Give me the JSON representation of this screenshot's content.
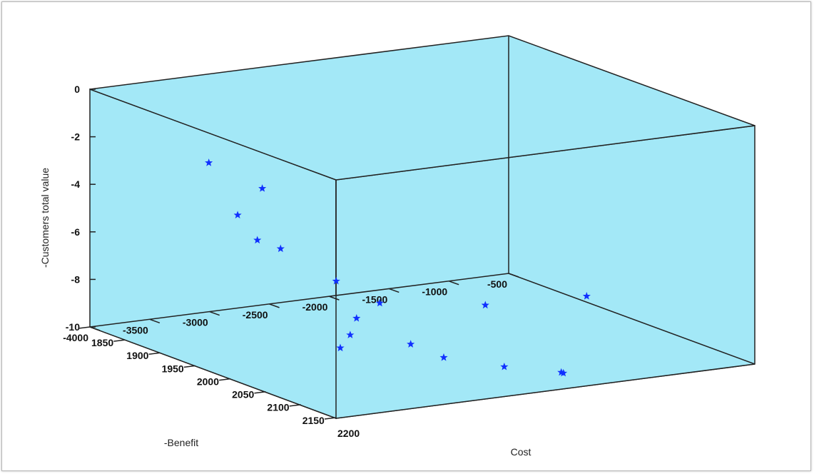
{
  "chart_data": {
    "type": "scatter",
    "title": "",
    "xlabel": "Cost",
    "ylabel": "-Benefit",
    "zlabel": "-Customers total value",
    "xlim": [
      1850,
      2200
    ],
    "ylim": [
      -4000,
      -500
    ],
    "zlim": [
      -10,
      0
    ],
    "xticks": [
      "1850",
      "1900",
      "1950",
      "2000",
      "2050",
      "2100",
      "2150",
      "2200"
    ],
    "yticks": [
      "-500",
      "-1000",
      "-1500",
      "-2000",
      "-2500",
      "-3000",
      "-3500",
      "-4000"
    ],
    "zticks": [
      "0",
      "-2",
      "-4",
      "-6",
      "-8",
      "-10"
    ],
    "marker": "star",
    "pane_color": "#a3e8f7",
    "marker_color": "#1030ff",
    "grid": false,
    "points": [
      {
        "x": 1900,
        "y": -3300,
        "z": -3.0
      },
      {
        "x": 1925,
        "y": -3000,
        "z": -4.0
      },
      {
        "x": 1890,
        "y": -3000,
        "z": -5.5
      },
      {
        "x": 1900,
        "y": -2700,
        "z": -7.0
      },
      {
        "x": 1935,
        "y": -3100,
        "z": -6.0
      },
      {
        "x": 1945,
        "y": -2500,
        "z": -8.0
      },
      {
        "x": 1990,
        "y": -2400,
        "z": -8.5
      },
      {
        "x": 2025,
        "y": -2800,
        "z": -8.5
      },
      {
        "x": 2050,
        "y": -3000,
        "z": -8.8
      },
      {
        "x": 2070,
        "y": -3200,
        "z": -9.0
      },
      {
        "x": 2055,
        "y": -1900,
        "z": -8.2
      },
      {
        "x": 2085,
        "y": -2700,
        "z": -9.0
      },
      {
        "x": 2115,
        "y": -2600,
        "z": -9.3
      },
      {
        "x": 2150,
        "y": -2300,
        "z": -9.5
      },
      {
        "x": 2180,
        "y": -2000,
        "z": -9.6
      },
      {
        "x": 2183,
        "y": -2000,
        "z": -9.6
      },
      {
        "x": 2080,
        "y": -1200,
        "z": -8.0
      }
    ]
  }
}
